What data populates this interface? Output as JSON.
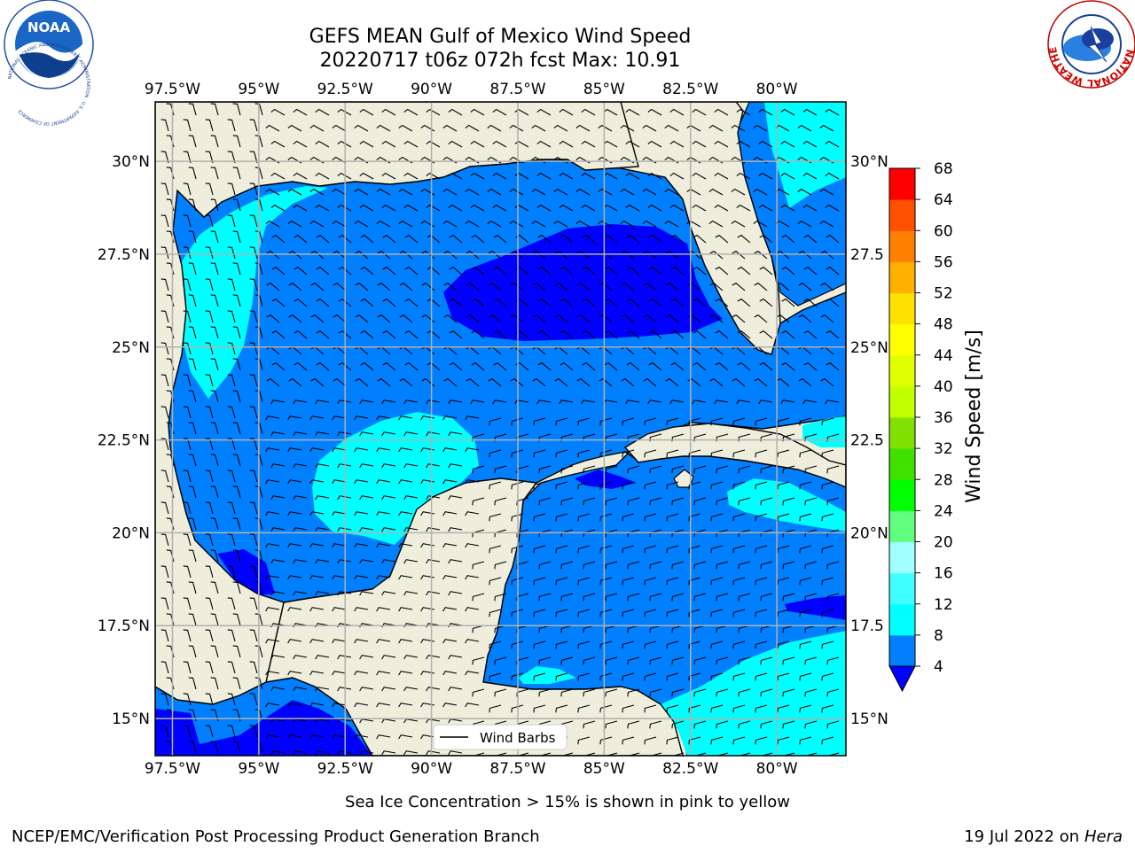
{
  "title": {
    "line1": "GEFS MEAN Gulf of Mexico Wind Speed",
    "line2": "20220717 t06z 072h fcst   Max: 10.91"
  },
  "axes": {
    "x_ticks": [
      "97.5°W",
      "95°W",
      "92.5°W",
      "90°W",
      "87.5°W",
      "85°W",
      "82.5°W",
      "80°W"
    ],
    "x_values": [
      -97.5,
      -95,
      -92.5,
      -90,
      -87.5,
      -85,
      -82.5,
      -80
    ],
    "y_ticks": [
      "30°N",
      "27.5°N",
      "25°N",
      "22.5°N",
      "20°N",
      "17.5°N",
      "15°N"
    ],
    "y_values": [
      30,
      27.5,
      25,
      22.5,
      20,
      17.5,
      15
    ],
    "y_ticks_right": [
      "30°N",
      "27.5",
      "25°N",
      "22.5",
      "20°N",
      "17.5",
      "15°N"
    ],
    "lon_range": [
      -98,
      -78
    ],
    "lat_range": [
      14,
      31.6
    ],
    "grid": true
  },
  "legend": {
    "label": "Wind Barbs",
    "placement": "bottom-center"
  },
  "colorbar": {
    "label": "Wind Speed [m/s]",
    "ticks": [
      "68",
      "64",
      "60",
      "56",
      "52",
      "48",
      "44",
      "40",
      "36",
      "32",
      "28",
      "24",
      "20",
      "16",
      "12",
      "8",
      "4"
    ],
    "levels": [
      4,
      8,
      12,
      16,
      20,
      24,
      28,
      32,
      36,
      40,
      44,
      48,
      52,
      56,
      60,
      64,
      68
    ],
    "colors": [
      "#0080ff",
      "#00ffff",
      "#40ffff",
      "#a0ffff",
      "#60ff80",
      "#00ff00",
      "#40e000",
      "#80e000",
      "#c0ff00",
      "#e0ff00",
      "#ffff00",
      "#ffe000",
      "#ffb000",
      "#ff8000",
      "#ff5000",
      "#ff0000"
    ],
    "extend_color": "#0000ff"
  },
  "colors": {
    "land": "#efeedc",
    "ocean": "#0080ff",
    "cyan": "#00ffff",
    "deep_blue": "#0000ff",
    "grid": "#b0b0b0"
  },
  "footer": {
    "note": "Sea Ice Concentration > 15% is shown in pink to yellow",
    "left": "NCEP/EMC/Verification Post Processing Product Generation Branch",
    "right_date": "19 Jul 2022 on ",
    "right_host": "Hera"
  },
  "logos": {
    "left": {
      "icon": "noaa-logo",
      "text": "NOAA",
      "ring": "NATIONAL OCEANIC AND ATMOSPHERIC ADMINISTRATION · U.S. DEPARTMENT OF COMMERCE"
    },
    "right": {
      "icon": "nws-logo",
      "ring": "NATIONAL WEATHER SERVICE"
    }
  }
}
